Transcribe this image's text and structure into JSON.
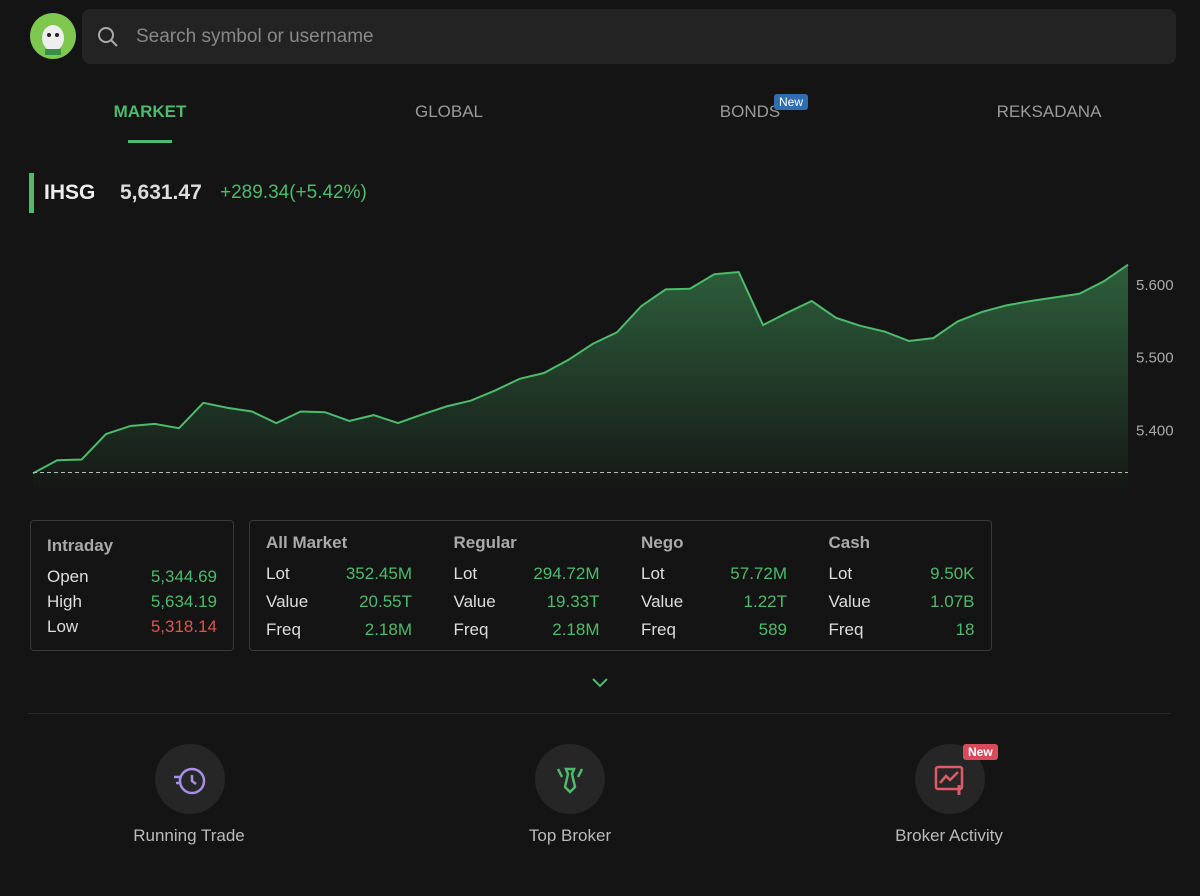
{
  "search": {
    "placeholder": "Search symbol or username"
  },
  "tabs": [
    {
      "label": "MARKET"
    },
    {
      "label": "GLOBAL"
    },
    {
      "label": "BONDS",
      "badge": "New"
    },
    {
      "label": "REKSADANA"
    }
  ],
  "index": {
    "name": "IHSG",
    "price": "5,631.47",
    "change": "+289.34(+5.42%)"
  },
  "chart_data": {
    "type": "area",
    "color": "#4cbb6c",
    "values": [
      5341,
      5359,
      5360,
      5395,
      5406,
      5409,
      5403,
      5438,
      5431,
      5426,
      5410,
      5426,
      5425,
      5413,
      5421,
      5410,
      5422,
      5433,
      5441,
      5455,
      5471,
      5479,
      5497,
      5519,
      5535,
      5571,
      5594,
      5595,
      5615,
      5618,
      5545,
      5562,
      5578,
      5555,
      5544,
      5536,
      5523,
      5527,
      5550,
      5563,
      5572,
      5578,
      5583,
      5588,
      5605,
      5628
    ],
    "ylim": [
      5318,
      5662
    ],
    "yticks": [
      {
        "value": 5400,
        "label": "5.400"
      },
      {
        "value": 5500,
        "label": "5.500"
      },
      {
        "value": 5600,
        "label": "5.600"
      }
    ],
    "baseline": 5342.13
  },
  "intraday": {
    "title": "Intraday",
    "rows": [
      [
        "Open",
        "5,344.69"
      ],
      [
        "High",
        "5,634.19"
      ],
      [
        "Low",
        "5,318.14"
      ]
    ]
  },
  "markets": [
    {
      "title": "All Market",
      "rows": [
        [
          "Lot",
          "352.45M"
        ],
        [
          "Value",
          "20.55T"
        ],
        [
          "Freq",
          "2.18M"
        ]
      ]
    },
    {
      "title": "Regular",
      "rows": [
        [
          "Lot",
          "294.72M"
        ],
        [
          "Value",
          "19.33T"
        ],
        [
          "Freq",
          "2.18M"
        ]
      ]
    },
    {
      "title": "Nego",
      "rows": [
        [
          "Lot",
          "57.72M"
        ],
        [
          "Value",
          "1.22T"
        ],
        [
          "Freq",
          "589"
        ]
      ]
    },
    {
      "title": "Cash",
      "rows": [
        [
          "Lot",
          "9.50K"
        ],
        [
          "Value",
          "1.07B"
        ],
        [
          "Freq",
          "18"
        ]
      ]
    }
  ],
  "shortcuts": [
    {
      "label": "Running Trade"
    },
    {
      "label": "Top Broker"
    },
    {
      "label": "Broker Activity",
      "badge": "New"
    }
  ]
}
